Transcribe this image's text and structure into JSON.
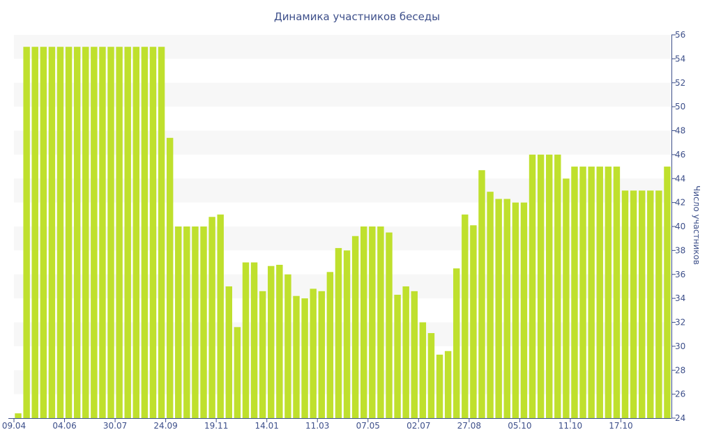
{
  "chart_data": {
    "type": "bar",
    "title": "Динамика участников беседы",
    "xlabel": "",
    "ylabel": "Число участников",
    "y_axis_side": "right",
    "ylim": [
      24,
      56
    ],
    "yticks": [
      24,
      26,
      28,
      30,
      32,
      34,
      36,
      38,
      40,
      42,
      44,
      46,
      48,
      50,
      52,
      54,
      56
    ],
    "x_tick_labels": [
      {
        "index": 0,
        "label": "09.04"
      },
      {
        "index": 6,
        "label": "04.06"
      },
      {
        "index": 12,
        "label": "30.07"
      },
      {
        "index": 18,
        "label": "24.09"
      },
      {
        "index": 24,
        "label": "19.11"
      },
      {
        "index": 30,
        "label": "14.01"
      },
      {
        "index": 36,
        "label": "11.03"
      },
      {
        "index": 42,
        "label": "07.05"
      },
      {
        "index": 48,
        "label": "02.07"
      },
      {
        "index": 54,
        "label": "27.08"
      },
      {
        "index": 60,
        "label": "05.10"
      },
      {
        "index": 66,
        "label": "11.10"
      },
      {
        "index": 72,
        "label": "17.10"
      }
    ],
    "values": [
      24.4,
      55,
      55,
      55,
      55,
      55,
      55,
      55,
      55,
      55,
      55,
      55,
      55,
      55,
      55,
      55,
      55,
      55,
      47.4,
      40,
      40,
      40,
      40,
      40.8,
      41,
      35,
      31.6,
      37,
      37,
      34.6,
      36.7,
      36.8,
      36,
      34.2,
      34,
      34.8,
      34.6,
      36.2,
      38.2,
      38,
      39.2,
      40,
      40,
      40,
      39.5,
      34.3,
      35,
      34.6,
      32,
      31.1,
      29.3,
      29.6,
      36.5,
      41,
      40.1,
      44.7,
      42.9,
      42.3,
      42.3,
      42,
      42,
      46,
      46,
      46,
      46,
      44,
      45,
      45,
      45,
      45,
      45,
      45,
      43,
      43,
      43,
      43,
      43,
      45
    ],
    "grid": "alternating horizontal bands",
    "legend": "none",
    "colors": {
      "bar": "#bfe02d",
      "band": "#f7f7f7",
      "text": "#3d4f8a",
      "axis": "#3d4f8a"
    }
  }
}
